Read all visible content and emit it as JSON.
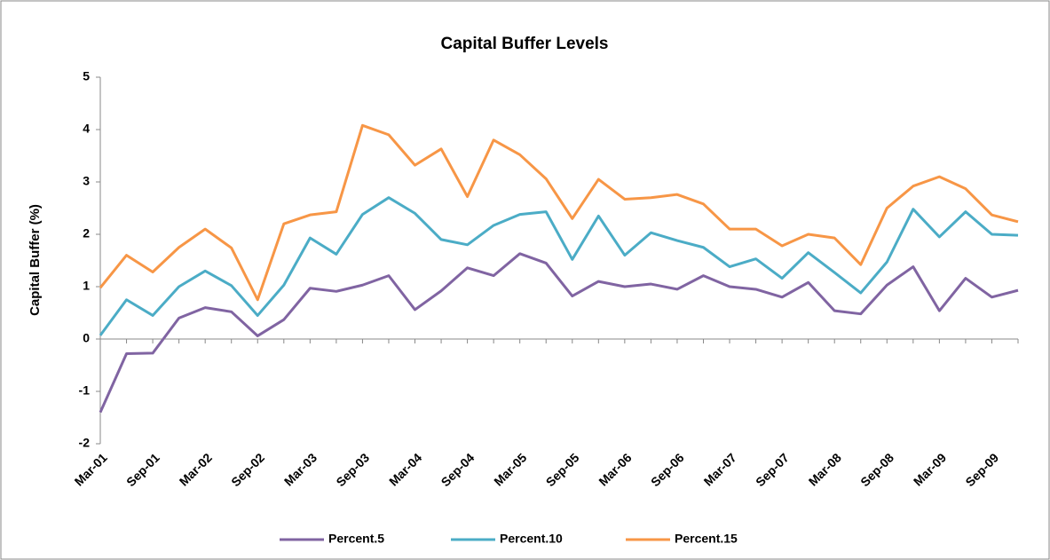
{
  "chart_data": {
    "type": "line",
    "title": "Capital Buffer Levels",
    "y_label": "Capital Buffer (%)",
    "categories": [
      "Mar-01",
      null,
      "Sep-01",
      null,
      "Mar-02",
      null,
      "Sep-02",
      null,
      "Mar-03",
      null,
      "Sep-03",
      null,
      "Mar-04",
      null,
      "Sep-04",
      null,
      "Mar-05",
      null,
      "Sep-05",
      null,
      "Mar-06",
      null,
      "Sep-06",
      null,
      "Mar-07",
      null,
      "Sep-07",
      null,
      "Mar-08",
      null,
      "Sep-08",
      null,
      "Mar-09",
      null,
      "Sep-09",
      null
    ],
    "series": [
      {
        "name": "Percent.5",
        "color": "#8064a2",
        "values": [
          -1.4,
          -0.28,
          -0.27,
          0.4,
          0.6,
          0.52,
          0.06,
          0.37,
          0.97,
          0.91,
          1.03,
          1.21,
          0.56,
          0.92,
          1.36,
          1.21,
          1.63,
          1.45,
          0.82,
          1.1,
          1.0,
          1.05,
          0.95,
          1.21,
          1.0,
          0.95,
          0.8,
          1.08,
          0.54,
          0.48,
          1.03,
          1.38,
          0.54,
          1.16,
          0.8,
          0.93
        ]
      },
      {
        "name": "Percent.10",
        "color": "#4bacc6",
        "values": [
          0.07,
          0.75,
          0.45,
          1.0,
          1.3,
          1.02,
          0.45,
          1.03,
          1.93,
          1.62,
          2.38,
          2.7,
          2.4,
          1.9,
          1.8,
          2.17,
          2.38,
          2.43,
          1.52,
          2.35,
          1.6,
          2.03,
          1.88,
          1.75,
          1.38,
          1.53,
          1.16,
          1.65,
          1.27,
          0.88,
          1.47,
          2.48,
          1.95,
          2.43,
          2.0,
          1.98
        ]
      },
      {
        "name": "Percent.15",
        "color": "#f79646",
        "values": [
          0.98,
          1.6,
          1.28,
          1.75,
          2.1,
          1.74,
          0.75,
          2.2,
          2.37,
          2.43,
          4.08,
          3.9,
          3.32,
          3.63,
          2.72,
          3.8,
          3.52,
          3.06,
          2.3,
          3.05,
          2.67,
          2.7,
          2.76,
          2.58,
          2.1,
          2.1,
          1.78,
          2.0,
          1.93,
          1.42,
          2.5,
          2.92,
          3.1,
          2.87,
          2.37,
          2.24
        ]
      }
    ],
    "ylim": [
      -2,
      5
    ],
    "yticks": [
      -2,
      -1,
      0,
      1,
      2,
      3,
      4,
      5
    ],
    "grid": false,
    "legend": "bottom"
  }
}
